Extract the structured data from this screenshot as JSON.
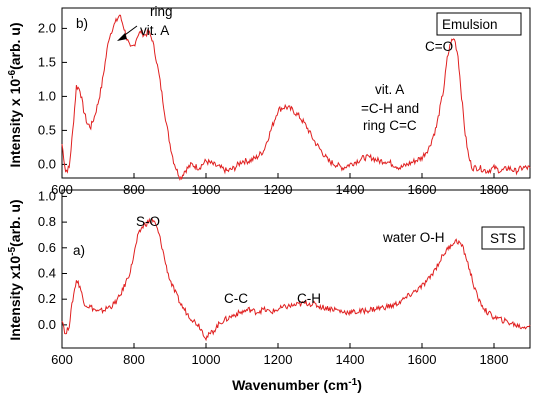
{
  "chart_data": [
    {
      "type": "line",
      "panel_label": "b)",
      "legend_box": "Emulsion",
      "ylabel": "Intensity x 10",
      "ylabel_exp": "-6",
      "ylabel_unit": "(arb. u)",
      "xlim": [
        600,
        1900
      ],
      "ylim": [
        -0.2,
        2.3
      ],
      "yticks": [
        "0.0",
        "0.5",
        "1.0",
        "1.5",
        "2.0"
      ],
      "ytick_values": [
        0.0,
        0.5,
        1.0,
        1.5,
        2.0
      ],
      "xticks": [
        "600",
        "800",
        "1000",
        "1200",
        "1400",
        "1600",
        "1800"
      ],
      "xtick_values": [
        600,
        800,
        1000,
        1200,
        1400,
        1600,
        1800
      ],
      "color": "#e02020",
      "series": [
        {
          "x": [
            600,
            610,
            620,
            630,
            640,
            650,
            660,
            670,
            680,
            690,
            700,
            710,
            720,
            730,
            740,
            750,
            760,
            770,
            780,
            790,
            800,
            810,
            820,
            830,
            840,
            850,
            860,
            870,
            880,
            890,
            900,
            910,
            920,
            930,
            940,
            960,
            980,
            1000,
            1020,
            1040,
            1060,
            1080,
            1100,
            1120,
            1140,
            1160,
            1180,
            1200,
            1220,
            1240,
            1260,
            1280,
            1300,
            1320,
            1340,
            1360,
            1380,
            1400,
            1420,
            1440,
            1460,
            1480,
            1500,
            1520,
            1540,
            1560,
            1580,
            1600,
            1620,
            1640,
            1660,
            1670,
            1680,
            1690,
            1700,
            1710,
            1720,
            1730,
            1740,
            1760,
            1780,
            1800,
            1820,
            1840,
            1860,
            1880,
            1900
          ],
          "y": [
            0.3,
            -0.1,
            -0.05,
            0.5,
            1.15,
            1.1,
            0.8,
            0.6,
            0.55,
            0.7,
            0.9,
            1.15,
            1.5,
            1.85,
            2.0,
            2.1,
            2.2,
            2.05,
            1.85,
            1.7,
            1.75,
            1.9,
            1.95,
            1.9,
            1.95,
            1.85,
            1.6,
            1.3,
            0.95,
            0.6,
            0.3,
            0.05,
            -0.1,
            -0.2,
            -0.1,
            0.0,
            -0.05,
            0.05,
            0.0,
            -0.05,
            -0.1,
            -0.05,
            0.05,
            0.05,
            0.1,
            0.2,
            0.5,
            0.8,
            0.85,
            0.8,
            0.7,
            0.55,
            0.35,
            0.2,
            0.05,
            0.0,
            -0.05,
            0.0,
            0.05,
            0.1,
            0.1,
            0.05,
            0.05,
            0.0,
            -0.05,
            0.0,
            0.05,
            0.1,
            0.25,
            0.55,
            1.1,
            1.55,
            1.8,
            1.85,
            1.6,
            1.0,
            0.45,
            0.1,
            -0.05,
            -0.05,
            -0.1,
            -0.05,
            -0.1,
            -0.05,
            -0.1,
            -0.05,
            -0.05
          ]
        }
      ],
      "annotations": {
        "ring": "ring",
        "vitA1": "vit. A",
        "vitA2": "vit. A",
        "ch_and": "=C-H and",
        "ring_cc": "ring C=C",
        "co": "C=O"
      }
    },
    {
      "type": "line",
      "panel_label": "a)",
      "legend_box": "STS",
      "ylabel": "Intensity x10",
      "ylabel_exp": "-5",
      "ylabel_unit": "(arb. u)",
      "xlabel": "Wavenumber (cm",
      "xlabel_exp": "-1",
      "xlabel_end": ")",
      "xlim": [
        600,
        1900
      ],
      "ylim": [
        -0.18,
        1.05
      ],
      "yticks": [
        "0.0",
        "0.2",
        "0.4",
        "0.6",
        "0.8",
        "1.0"
      ],
      "ytick_values": [
        0.0,
        0.2,
        0.4,
        0.6,
        0.8,
        1.0
      ],
      "xticks": [
        "600",
        "800",
        "1000",
        "1200",
        "1400",
        "1600",
        "1800"
      ],
      "xtick_values": [
        600,
        800,
        1000,
        1200,
        1400,
        1600,
        1800
      ],
      "color": "#e02020",
      "series": [
        {
          "x": [
            600,
            610,
            620,
            630,
            640,
            650,
            660,
            670,
            680,
            690,
            700,
            710,
            720,
            730,
            740,
            750,
            760,
            770,
            780,
            790,
            800,
            810,
            820,
            830,
            840,
            850,
            860,
            870,
            880,
            890,
            900,
            910,
            920,
            930,
            940,
            950,
            960,
            970,
            980,
            990,
            1000,
            1020,
            1040,
            1060,
            1080,
            1100,
            1120,
            1140,
            1160,
            1180,
            1200,
            1220,
            1240,
            1260,
            1280,
            1300,
            1320,
            1340,
            1360,
            1380,
            1400,
            1420,
            1440,
            1460,
            1480,
            1500,
            1520,
            1540,
            1560,
            1580,
            1600,
            1620,
            1640,
            1660,
            1680,
            1690,
            1700,
            1710,
            1720,
            1730,
            1740,
            1750,
            1760,
            1780,
            1800,
            1820,
            1840,
            1860,
            1880,
            1900
          ],
          "y": [
            0.05,
            -0.08,
            0.0,
            0.2,
            0.35,
            0.3,
            0.18,
            0.15,
            0.14,
            0.12,
            0.1,
            0.11,
            0.12,
            0.14,
            0.15,
            0.18,
            0.22,
            0.28,
            0.35,
            0.42,
            0.55,
            0.68,
            0.75,
            0.78,
            0.8,
            0.82,
            0.78,
            0.7,
            0.58,
            0.45,
            0.35,
            0.28,
            0.22,
            0.16,
            0.12,
            0.08,
            0.05,
            0.02,
            0.0,
            -0.05,
            -0.1,
            -0.05,
            0.02,
            0.05,
            0.08,
            0.1,
            0.12,
            0.1,
            0.12,
            0.1,
            0.12,
            0.14,
            0.15,
            0.16,
            0.17,
            0.16,
            0.14,
            0.13,
            0.12,
            0.1,
            0.1,
            0.1,
            0.11,
            0.12,
            0.13,
            0.14,
            0.15,
            0.18,
            0.22,
            0.26,
            0.3,
            0.36,
            0.45,
            0.55,
            0.62,
            0.65,
            0.65,
            0.62,
            0.55,
            0.45,
            0.35,
            0.25,
            0.18,
            0.1,
            0.06,
            0.04,
            0.02,
            0.0,
            -0.02,
            0.0
          ]
        }
      ],
      "annotations": {
        "so": "S-O",
        "cc": "C-C",
        "ch": "C-H",
        "water": "water O-H"
      }
    }
  ]
}
